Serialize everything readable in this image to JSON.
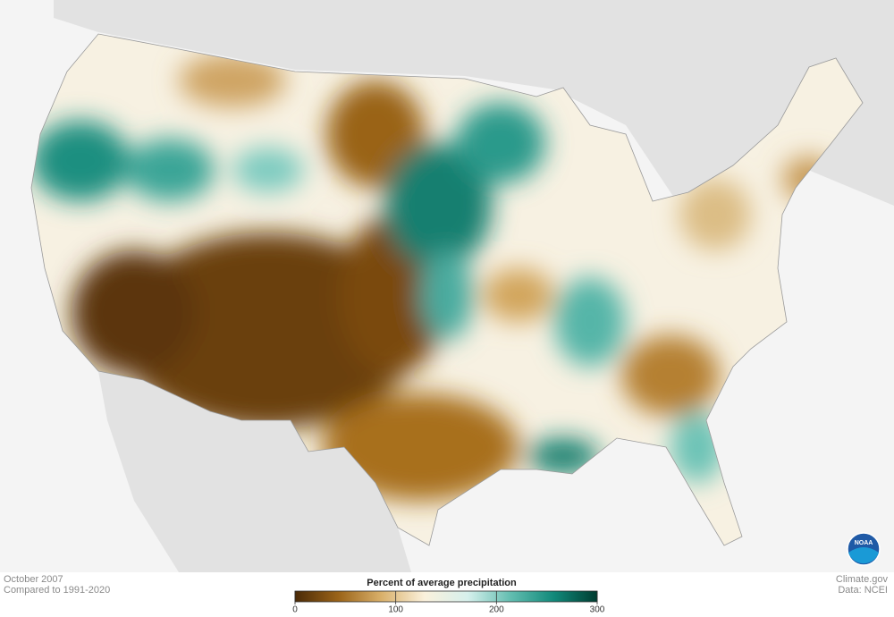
{
  "footer": {
    "date": "October 2007",
    "baseline": "Compared to 1991-2020",
    "site": "Climate.gov",
    "source": "Data: NCEI"
  },
  "legend": {
    "title": "Percent of average precipitation",
    "range": [
      0,
      300
    ],
    "ticks": [
      0,
      100,
      200,
      300
    ],
    "colors": [
      "#4a2a07",
      "#9a6318",
      "#d9b06a",
      "#fbf1dc",
      "#d6f0ec",
      "#62bdb0",
      "#11897a",
      "#003c30"
    ]
  },
  "logo": {
    "label": "NOAA"
  }
}
